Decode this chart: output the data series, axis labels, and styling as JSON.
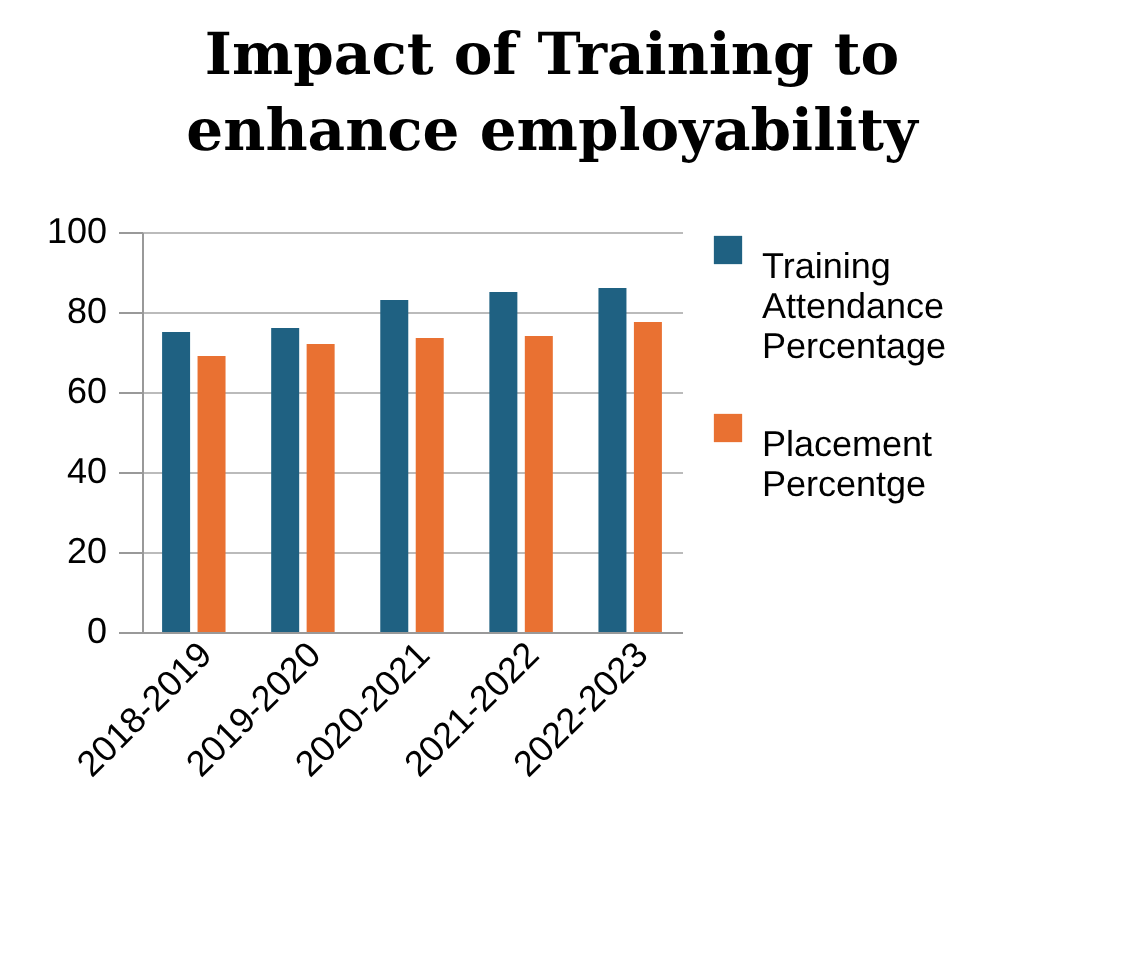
{
  "chart_data": {
    "type": "bar",
    "title": "Impact of Training to enhance employability",
    "categories": [
      "2018-2019",
      "2019-2020",
      "2020-2021",
      "2021-2022",
      "2022-2023"
    ],
    "series": [
      {
        "name": "Training Attendance Percentage",
        "color": "#1f6182",
        "values": [
          75,
          76,
          83,
          85,
          86
        ]
      },
      {
        "name": "Placement Percentge",
        "color": "#e97132",
        "values": [
          69,
          72,
          73.5,
          74,
          77.5
        ]
      }
    ],
    "ylim": [
      0,
      100
    ],
    "yticks": [
      0,
      20,
      40,
      60,
      80,
      100
    ],
    "grid": "y",
    "legend": "right"
  }
}
